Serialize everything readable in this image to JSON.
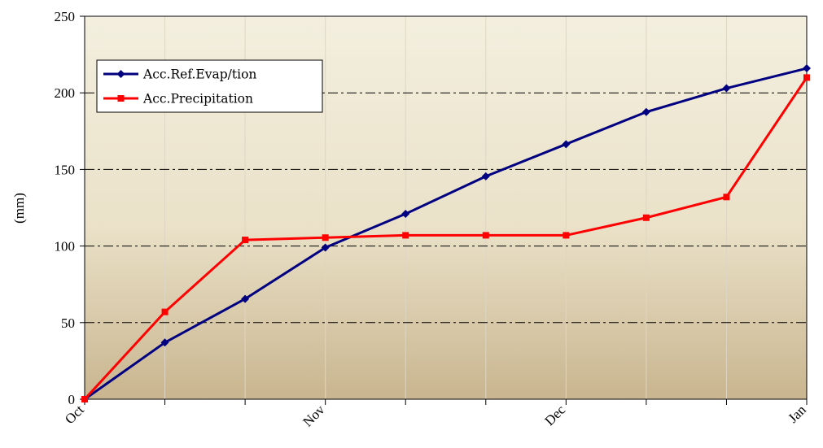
{
  "chart_data": {
    "type": "line",
    "title": "",
    "xlabel": "",
    "ylabel": "(mm)",
    "ylim": [
      0,
      250
    ],
    "yticks": [
      0,
      50,
      100,
      150,
      200,
      250
    ],
    "xlim": [
      0,
      9
    ],
    "xticks": [
      {
        "x": 0,
        "label": "Oct"
      },
      {
        "x": 3,
        "label": "Nov"
      },
      {
        "x": 6,
        "label": "Dec"
      },
      {
        "x": 9,
        "label": "Jan"
      }
    ],
    "grid": "horizontal dash-dot",
    "legend_position": "top-left",
    "series": [
      {
        "name": "Acc.Ref.Evap/tion",
        "color": "#000080",
        "marker": "diamond",
        "x": [
          0,
          1,
          2,
          3,
          4,
          5,
          6,
          7,
          8,
          9
        ],
        "y": [
          0,
          37,
          65.5,
          99,
          121,
          145.5,
          166.5,
          187.5,
          203,
          216
        ]
      },
      {
        "name": "Acc.Precipitation",
        "color": "#ff0000",
        "marker": "square",
        "x": [
          0,
          1,
          2,
          3,
          4,
          5,
          6,
          7,
          8,
          9
        ],
        "y": [
          0,
          57,
          104,
          105.5,
          107,
          107,
          107,
          118.5,
          132,
          210
        ]
      }
    ]
  }
}
